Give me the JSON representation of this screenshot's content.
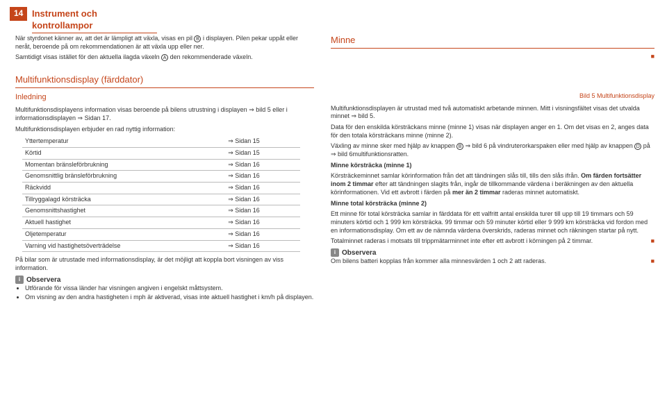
{
  "pageNumber": "14",
  "headerTitle": "Instrument och kontrollampor",
  "intro": {
    "p1a": "När styrdonet känner av, att det är lämpligt att växla, visas en pil ",
    "circB": "B",
    "p1b": " i displayen. Pilen pekar uppåt eller neråt, beroende på om rekommendationen är att växla upp eller ner.",
    "p2a": "Samtidigt visas istället för den aktuella ilagda växeln ",
    "circA": "A",
    "p2b": " den rekommenderade växeln."
  },
  "minneHeading": "Minne",
  "mfdHeading": "Multifunktionsdisplay (färddator)",
  "inledningHeading": "Inledning",
  "left": {
    "p1": "Multifunktionsdisplayens information visas beroende på bilens utrustning i displayen ⇒ bild 5 eller i informationsdisplayen ⇒ Sidan 17.",
    "p2": "Multifunktionsdisplayen erbjuder en rad nyttig information:",
    "tableRows": [
      [
        "Yttertemperatur",
        "⇒ Sidan 15"
      ],
      [
        "Körtid",
        "⇒ Sidan 15"
      ],
      [
        "Momentan bränsleförbrukning",
        "⇒ Sidan 16"
      ],
      [
        "Genomsnittlig bränsleförbrukning",
        "⇒ Sidan 16"
      ],
      [
        "Räckvidd",
        "⇒ Sidan 16"
      ],
      [
        "Tillryggalagd körsträcka",
        "⇒ Sidan 16"
      ],
      [
        "Genomsnittshastighet",
        "⇒ Sidan 16"
      ],
      [
        "Aktuell hastighet",
        "⇒ Sidan 16"
      ],
      [
        "Oljetemperatur",
        "⇒ Sidan 16"
      ],
      [
        "Varning vid hastighetsöverträdelse",
        "⇒ Sidan 16"
      ]
    ],
    "p3": "På bilar som är utrustade med informationsdisplay, är det möjligt att koppla bort visningen av viss information.",
    "obsTitle": "Observera",
    "bullets": [
      "Utförande för vissa länder har visningen angiven i engelskt måttsystem.",
      "Om visning av den andra hastigheten i mph är aktiverad, visas inte aktuell hastighet i km/h på displayen."
    ]
  },
  "right": {
    "caption": "Bild 5  Multifunktionsdisplay",
    "p1": "Multifunktionsdisplayen är utrustad med två automatiskt arbetande minnen. Mitt i visningsfältet visas det utvalda minnet ⇒ bild 5.",
    "p2": "Data för den enskilda körsträckans minne (minne 1) visas när displayen anger en 1. Om det visas en 2, anges data för den totala körsträckans minne (minne 2).",
    "p3a": "Växling av minne sker med hjälp av knappen ",
    "circB": "B",
    "p3b": " ⇒ bild 6 på vindruterorkarspaken eller med hjälp av knappen ",
    "circD": "D",
    "p3c": " på ⇒ bild 6multifunktionsratten.",
    "h1": "Minne körsträcka (minne 1)",
    "p4": "Körsträckeminnet samlar körinformation från det att tändningen slås till, tills den slås ifrån. Om färden fortsätter inom 2 timmar efter att tändningen slagits från, ingår de tillkommande värdena i beräkningen av den aktuella körinformationen. Vid ett avbrott i färden på mer än 2 timmar raderas minnet automatiskt.",
    "h2": "Minne total körsträcka (minne 2)",
    "p5": "Ett minne för total körsträcka samlar in färddata för ett valfritt antal enskilda turer till upp till 19 timmars och 59 minuters körtid och 1 999 km körsträcka. 99 timmar och 59 minuter körtid eller 9 999 km körsträcka vid fordon med en informationsdisplay. Om ett av de nämnda värdena överskrids, raderas minnet och räkningen startar på nytt.",
    "p6": "Totalminnet raderas i motsats till trippmätarminnet inte efter ett avbrott i körningen på 2 timmar.",
    "obsTitle": "Observera",
    "obsText": "Om bilens batteri kopplas från kommer alla minnesvärden 1 och 2 att raderas."
  }
}
